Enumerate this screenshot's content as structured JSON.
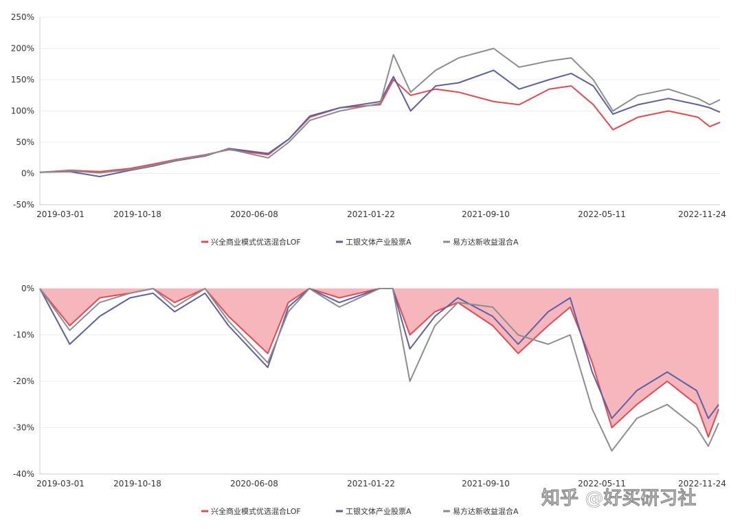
{
  "chart_data": [
    {
      "type": "line",
      "title": "",
      "ylim": [
        -50,
        250
      ],
      "y_ticks": [
        "250%",
        "200%",
        "150%",
        "100%",
        "50%",
        "0%",
        "-50%"
      ],
      "x_ticks": [
        "2019-03-01",
        "2019-10-18",
        "2020-06-08",
        "2021-01-22",
        "2021-09-10",
        "2022-05-11",
        "2022-11-24"
      ],
      "grid": "horizontal",
      "legend_position": "bottom",
      "x": [
        "2019-03-01",
        "2019-05-01",
        "2019-07-01",
        "2019-09-01",
        "2019-10-18",
        "2019-12-01",
        "2020-02-01",
        "2020-03-20",
        "2020-06-08",
        "2020-07-20",
        "2020-09-01",
        "2020-11-01",
        "2021-01-22",
        "2021-02-18",
        "2021-03-25",
        "2021-05-15",
        "2021-07-01",
        "2021-09-10",
        "2021-11-01",
        "2022-01-01",
        "2022-02-15",
        "2022-04-01",
        "2022-05-11",
        "2022-07-01",
        "2022-09-01",
        "2022-10-31",
        "2022-11-24",
        "2022-12-15"
      ],
      "series": [
        {
          "name": "兴全商业模式优选混合LOF",
          "color": "#e8474f",
          "values": [
            2,
            5,
            3,
            8,
            15,
            22,
            30,
            38,
            30,
            55,
            90,
            105,
            110,
            150,
            125,
            135,
            130,
            115,
            110,
            135,
            140,
            110,
            70,
            90,
            100,
            90,
            75,
            82
          ]
        },
        {
          "name": "工银文体产业股票A",
          "color": "#5b5ea6",
          "values": [
            2,
            3,
            -5,
            5,
            12,
            20,
            28,
            40,
            32,
            55,
            92,
            105,
            115,
            155,
            100,
            140,
            145,
            165,
            135,
            150,
            160,
            140,
            95,
            110,
            120,
            110,
            105,
            98
          ]
        },
        {
          "name": "易方达新收益混合A",
          "color": "#8c8c8c",
          "values": [
            2,
            4,
            1,
            6,
            13,
            21,
            29,
            39,
            25,
            50,
            85,
            100,
            112,
            190,
            130,
            165,
            185,
            200,
            170,
            180,
            185,
            150,
            100,
            125,
            135,
            120,
            110,
            118
          ]
        }
      ]
    },
    {
      "type": "area",
      "title": "",
      "ylim": [
        -40,
        0
      ],
      "y_ticks": [
        "0%",
        "-10%",
        "-20%",
        "-30%",
        "-40%"
      ],
      "x_ticks": [
        "2019-03-01",
        "2019-10-18",
        "2020-06-08",
        "2021-01-22",
        "2021-09-10",
        "2022-05-11",
        "2022-11-24"
      ],
      "grid": "horizontal",
      "legend_position": "bottom",
      "x": [
        "2019-03-01",
        "2019-05-01",
        "2019-07-01",
        "2019-09-01",
        "2019-10-18",
        "2019-12-01",
        "2020-02-01",
        "2020-03-20",
        "2020-06-08",
        "2020-07-20",
        "2020-09-01",
        "2020-11-01",
        "2021-01-22",
        "2021-02-18",
        "2021-03-25",
        "2021-05-15",
        "2021-07-01",
        "2021-09-10",
        "2021-11-01",
        "2022-01-01",
        "2022-02-15",
        "2022-04-01",
        "2022-05-11",
        "2022-07-01",
        "2022-09-01",
        "2022-10-31",
        "2022-11-24",
        "2022-12-15"
      ],
      "series": [
        {
          "name": "兴全商业模式优选混合LOF",
          "color": "#e8474f",
          "fill": "#f6b7bc",
          "values": [
            0,
            -8,
            -2,
            -1,
            0,
            -3,
            0,
            -6,
            -14,
            -3,
            0,
            -2,
            0,
            0,
            -10,
            -5,
            -3,
            -8,
            -14,
            -8,
            -4,
            -16,
            -30,
            -25,
            -20,
            -25,
            -32,
            -26
          ]
        },
        {
          "name": "工银文体产业股票A",
          "color": "#5b5ea6",
          "values": [
            0,
            -12,
            -6,
            -2,
            -1,
            -5,
            -1,
            -8,
            -17,
            -4,
            0,
            -3,
            0,
            0,
            -13,
            -6,
            -2,
            -6,
            -12,
            -5,
            -2,
            -18,
            -28,
            -22,
            -18,
            -22,
            -28,
            -25
          ]
        },
        {
          "name": "易方达新收益混合A",
          "color": "#8c8c8c",
          "values": [
            0,
            -9,
            -3,
            -1,
            0,
            -4,
            0,
            -7,
            -16,
            -5,
            0,
            -4,
            0,
            0,
            -20,
            -8,
            -3,
            -4,
            -10,
            -12,
            -10,
            -26,
            -35,
            -28,
            -25,
            -30,
            -34,
            -29
          ]
        }
      ]
    }
  ],
  "watermark": "知乎 @好买研习社"
}
